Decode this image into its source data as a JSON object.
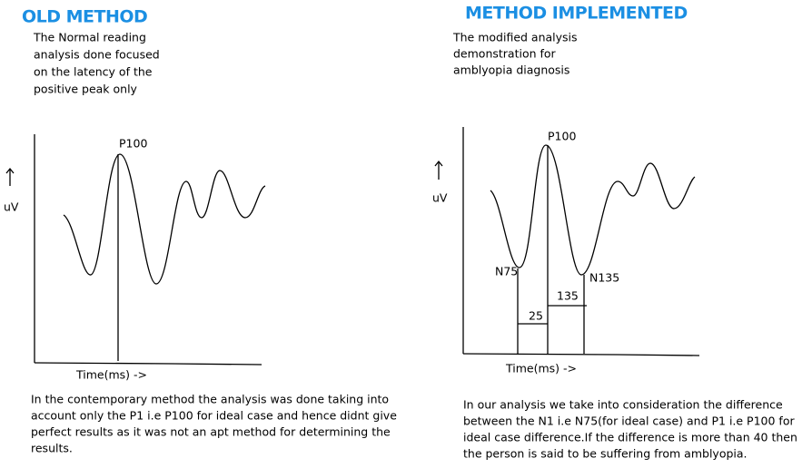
{
  "left": {
    "title": "OLD METHOD",
    "description": [
      "The Normal reading",
      "analysis done focused",
      "on the latency of the",
      "positive peak only"
    ],
    "y_axis_label": "uV",
    "peak_label": "P100",
    "x_axis_label": "Time(ms) ->",
    "caption": [
      "In the contemporary method the analysis was done taking into",
      "account only the P1 i.e P100 for ideal case and hence didnt give",
      "perfect results as it was not an apt method for determining the",
      "results."
    ]
  },
  "right": {
    "title": "METHOD IMPLEMENTED",
    "description": [
      "The modified analysis",
      "demonstration for",
      "amblyopia diagnosis"
    ],
    "y_axis_label": "uV",
    "peak_label": "P100",
    "trough_labels": [
      "N75",
      "N135"
    ],
    "interval_labels": [
      25,
      135
    ],
    "x_axis_label": "Time(ms) ->",
    "caption": [
      "In our analysis we take into consideration the difference",
      "between the N1 i.e N75(for ideal case) and P1 i.e P100 for",
      "ideal case difference.If the difference is more than 40 then",
      "the person is said to be suffering from amblyopia."
    ]
  }
}
